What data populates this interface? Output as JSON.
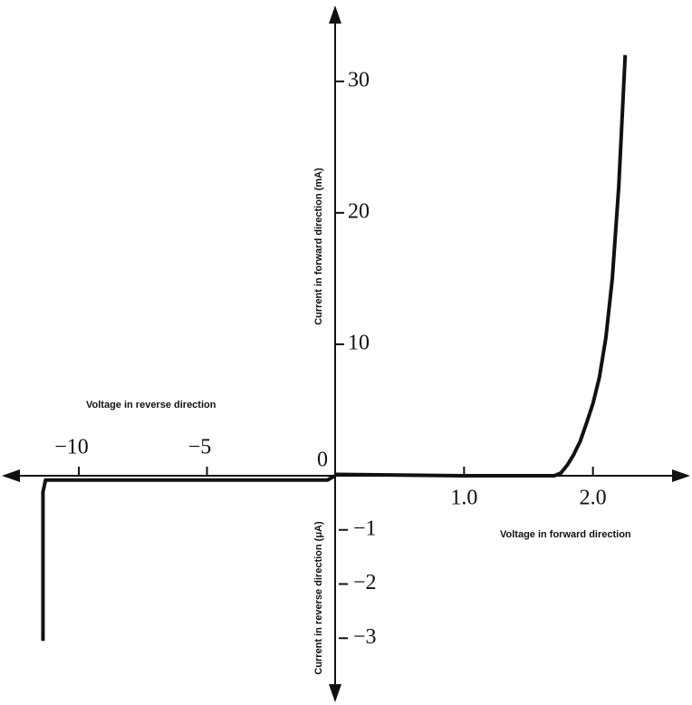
{
  "chart_data": {
    "type": "line",
    "x_label": "Voltage in forward direction",
    "x2_label": "Voltage in reverse direction",
    "y_label": "Current in forward direction (mA)",
    "y2_label": "Current in reverse direction (μA)",
    "xlim": [
      0,
      2.74
    ],
    "xticks": [
      {
        "value": 1,
        "label": "1.0"
      },
      {
        "value": 2,
        "label": "2.0"
      }
    ],
    "x2lim": [
      -12.9,
      0
    ],
    "x2ticks": [
      {
        "value": -10,
        "label": "−10"
      },
      {
        "value": -5,
        "label": "−5"
      }
    ],
    "ylim": [
      0,
      35.5
    ],
    "yticks": [
      0,
      10,
      20,
      30
    ],
    "y2lim": [
      -4.1,
      0
    ],
    "y2ticks": [
      {
        "value": -1,
        "label": "−1"
      },
      {
        "value": -2,
        "label": "−2"
      },
      {
        "value": -3,
        "label": "−3"
      }
    ],
    "color": "#111111",
    "series": [
      {
        "x": [
          0,
          0.5,
          1.0,
          1.5,
          1.7,
          1.75,
          1.8,
          1.85,
          1.9,
          1.95,
          2.0,
          2.05,
          2.1,
          2.15,
          2.2,
          2.25
        ],
        "values": [
          0.1,
          0.05,
          0,
          0,
          0,
          0.2,
          0.8,
          1.6,
          2.6,
          4,
          5.5,
          7.5,
          10.5,
          15,
          22,
          32
        ]
      },
      {
        "axis": "y2",
        "x": [
          0,
          -0.3,
          -5,
          -11.3,
          -11.4,
          -11.4
        ],
        "values": [
          0,
          -0.08,
          -0.08,
          -0.08,
          -0.3,
          -3.05
        ]
      }
    ]
  }
}
